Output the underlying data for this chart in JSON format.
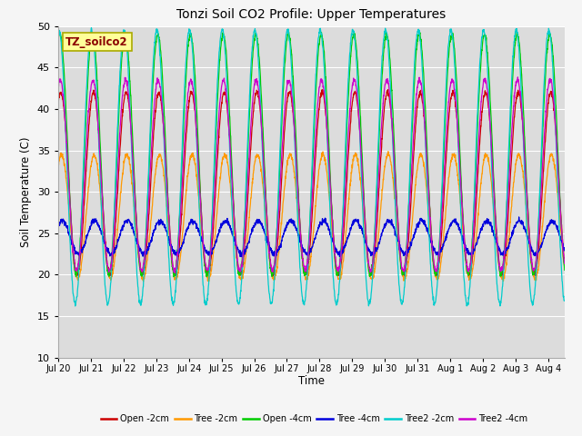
{
  "title": "Tonzi Soil CO2 Profile: Upper Temperatures",
  "ylabel": "Soil Temperature (C)",
  "xlabel": "Time",
  "ylim": [
    10,
    50
  ],
  "n_days": 15.5,
  "background_color": "#dcdcdc",
  "fig_facecolor": "#f5f5f5",
  "series": [
    {
      "label": "Open -2cm",
      "color": "#cc0000",
      "amp": 11.0,
      "base": 31.0,
      "phase_shift": 0.58,
      "min_val": 20
    },
    {
      "label": "Tree -2cm",
      "color": "#ff9900",
      "amp": 7.5,
      "base": 27.0,
      "phase_shift": 0.6,
      "min_val": 19
    },
    {
      "label": "Open -4cm",
      "color": "#00cc00",
      "amp": 14.5,
      "base": 34.5,
      "phase_shift": 0.55,
      "min_val": 21
    },
    {
      "label": "Tree -4cm",
      "color": "#0000dd",
      "amp": 2.0,
      "base": 24.5,
      "phase_shift": 0.62,
      "min_val": 22
    },
    {
      "label": "Tree2 -2cm",
      "color": "#00cccc",
      "amp": 16.5,
      "base": 33.0,
      "phase_shift": 0.52,
      "min_val": 15
    },
    {
      "label": "Tree2 -4cm",
      "color": "#cc00cc",
      "amp": 11.5,
      "base": 32.0,
      "phase_shift": 0.56,
      "min_val": 20
    }
  ],
  "tick_labels": [
    "Jul 20",
    "Jul 21",
    "Jul 22",
    "Jul 23",
    "Jul 24",
    "Jul 25",
    "Jul 26",
    "Jul 27",
    "Jul 28",
    "Jul 29",
    "Jul 30",
    "Jul 31",
    "Aug 1",
    "Aug 2",
    "Aug 3",
    "Aug 4"
  ],
  "watermark": "TZ_soilco2",
  "watermark_color": "#8B0000",
  "watermark_bg": "#ffff99",
  "watermark_edge": "#aaaa00"
}
